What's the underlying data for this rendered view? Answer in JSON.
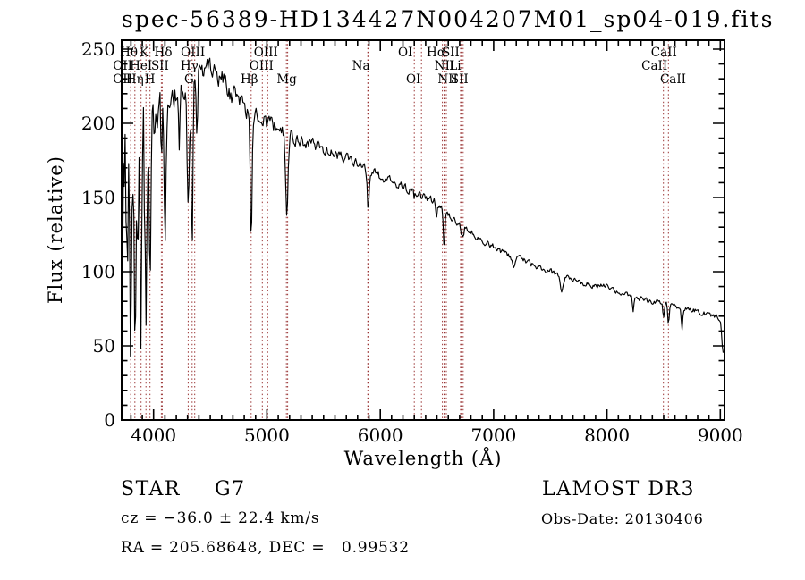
{
  "title": "spec-56389-HD134427N004207M01_sp04-019.fits",
  "axes": {
    "x": {
      "label": "Wavelength (Å)",
      "tick_values": [
        4000,
        5000,
        6000,
        7000,
        8000,
        9000
      ],
      "minor_step": 100
    },
    "y": {
      "label": "Flux (relative)",
      "tick_values": [
        0,
        50,
        100,
        150,
        200,
        250
      ],
      "minor_step": 10
    }
  },
  "footer": {
    "classification": "STAR",
    "subclass": "G7",
    "cz_line": "cz = −36.0 ± 22.4 km/s",
    "radec_line": "RA = 205.68648, DEC =   0.99532",
    "survey": "LAMOST DR3",
    "obsdate_line": "Obs-Date: 20130406"
  },
  "colors": {
    "spectrum": "#000000",
    "marker_lines": "#9a3434",
    "frame": "#000000",
    "background": "#ffffff"
  },
  "spectral_lines": {
    "wavelengths": [
      3727,
      3798,
      3835,
      3889,
      3933,
      3968,
      4068,
      4076,
      4101,
      4305,
      4340,
      4363,
      4861,
      4959,
      5007,
      5172,
      5183,
      5890,
      5896,
      6300,
      6363,
      6548,
      6563,
      6583,
      6708,
      6716,
      6731,
      8498,
      8542,
      8662
    ],
    "labels": [
      {
        "text": "Hθ",
        "wl": 3798,
        "row": 1,
        "dx": -2
      },
      {
        "text": "K",
        "wl": 3933,
        "row": 1,
        "dx": -2
      },
      {
        "text": "Hδ",
        "wl": 4101,
        "row": 1,
        "dx": -2
      },
      {
        "text": "OIII",
        "wl": 4363,
        "row": 1,
        "dx": -2
      },
      {
        "text": "OIII",
        "wl": 5007,
        "row": 1,
        "dx": -2
      },
      {
        "text": "OI",
        "wl": 6300,
        "row": 1,
        "dx": -10
      },
      {
        "text": "Hα",
        "wl": 6563,
        "row": 1,
        "dx": -9
      },
      {
        "text": "SII",
        "wl": 6716,
        "row": 1,
        "dx": -12
      },
      {
        "text": "CaII",
        "wl": 8542,
        "row": 1,
        "dx": -5
      },
      {
        "text": "OII",
        "wl": 3727,
        "row": 2,
        "dx": 0
      },
      {
        "text": "HeI",
        "wl": 3889,
        "row": 2,
        "dx": 0
      },
      {
        "text": "SII",
        "wl": 4072,
        "row": 2,
        "dx": -2
      },
      {
        "text": "Hγ",
        "wl": 4340,
        "row": 2,
        "dx": -3
      },
      {
        "text": "OIII",
        "wl": 4959,
        "row": 2,
        "dx": -1
      },
      {
        "text": "Na",
        "wl": 5893,
        "row": 2,
        "dx": -8
      },
      {
        "text": "NII",
        "wl": 6583,
        "row": 2,
        "dx": -2
      },
      {
        "text": "Li",
        "wl": 6708,
        "row": 2,
        "dx": -6
      },
      {
        "text": "CaII",
        "wl": 8498,
        "row": 2,
        "dx": -10
      },
      {
        "text": "OII",
        "wl": 3727,
        "row": 3,
        "dx": 0
      },
      {
        "text": "Hη",
        "wl": 3835,
        "row": 3,
        "dx": 0
      },
      {
        "text": "H",
        "wl": 3968,
        "row": 3,
        "dx": 0
      },
      {
        "text": "G",
        "wl": 4305,
        "row": 3,
        "dx": 1
      },
      {
        "text": "Hβ",
        "wl": 4861,
        "row": 3,
        "dx": -2
      },
      {
        "text": "Mg",
        "wl": 5175,
        "row": 3,
        "dx": 0
      },
      {
        "text": "OI",
        "wl": 6363,
        "row": 3,
        "dx": -9
      },
      {
        "text": "NII",
        "wl": 6548,
        "row": 3,
        "dx": 6
      },
      {
        "text": "SII",
        "wl": 6731,
        "row": 3,
        "dx": -4
      },
      {
        "text": "CaII",
        "wl": 8662,
        "row": 3,
        "dx": -10
      }
    ]
  },
  "chart_data": {
    "type": "line",
    "title": "spec-56389-HD134427N004207M01_sp04-019.fits",
    "xlabel": "Wavelength (Å)",
    "ylabel": "Flux (relative)",
    "xlim": [
      3718,
      9037
    ],
    "ylim": [
      0,
      256
    ],
    "x_ticks": [
      4000,
      5000,
      6000,
      7000,
      8000,
      9000
    ],
    "y_ticks": [
      0,
      50,
      100,
      150,
      200,
      250
    ],
    "grid": false,
    "legend": "none",
    "description": "Noisy stellar spectrum (G7 star): flux rises from ~150 at 3718 Å to a peak ~235-245 near 4400-4600 Å, then declines steadily to ~70 at 9000 Å; strong noise at the blue end and absorption dips at Balmer/CaII/Mg/Na/Ha/CaII-triplet lines.",
    "continuum_points": [
      [
        3718,
        150
      ],
      [
        3760,
        155
      ],
      [
        3800,
        165
      ],
      [
        3850,
        172
      ],
      [
        3900,
        178
      ],
      [
        3950,
        182
      ],
      [
        4000,
        195
      ],
      [
        4050,
        205
      ],
      [
        4100,
        212
      ],
      [
        4150,
        216
      ],
      [
        4200,
        220
      ],
      [
        4250,
        227
      ],
      [
        4300,
        231
      ],
      [
        4350,
        233
      ],
      [
        4400,
        232
      ],
      [
        4450,
        233
      ],
      [
        4500,
        233
      ],
      [
        4550,
        231
      ],
      [
        4600,
        228
      ],
      [
        4650,
        224
      ],
      [
        4700,
        220
      ],
      [
        4750,
        214
      ],
      [
        4800,
        210
      ],
      [
        4850,
        207
      ],
      [
        4900,
        205
      ],
      [
        4950,
        202
      ],
      [
        5000,
        200
      ],
      [
        5100,
        196
      ],
      [
        5200,
        192
      ],
      [
        5300,
        189
      ],
      [
        5400,
        186
      ],
      [
        5500,
        183
      ],
      [
        5600,
        179
      ],
      [
        5700,
        176
      ],
      [
        5800,
        173
      ],
      [
        5900,
        168
      ],
      [
        6000,
        164
      ],
      [
        6100,
        160
      ],
      [
        6200,
        157
      ],
      [
        6300,
        153
      ],
      [
        6400,
        150
      ],
      [
        6450,
        149
      ],
      [
        6500,
        147
      ],
      [
        6550,
        143
      ],
      [
        6600,
        137
      ],
      [
        6650,
        134
      ],
      [
        6700,
        131
      ],
      [
        6800,
        127
      ],
      [
        6900,
        121
      ],
      [
        7000,
        116
      ],
      [
        7100,
        112
      ],
      [
        7200,
        109
      ],
      [
        7300,
        106
      ],
      [
        7400,
        103
      ],
      [
        7500,
        100
      ],
      [
        7600,
        97
      ],
      [
        7700,
        94
      ],
      [
        7800,
        92
      ],
      [
        7900,
        91
      ],
      [
        8000,
        91
      ],
      [
        8050,
        89
      ],
      [
        8100,
        86
      ],
      [
        8200,
        84
      ],
      [
        8300,
        82
      ],
      [
        8400,
        80
      ],
      [
        8500,
        79
      ],
      [
        8600,
        77
      ],
      [
        8700,
        75
      ],
      [
        8800,
        73
      ],
      [
        8900,
        71
      ],
      [
        8980,
        69
      ],
      [
        9005,
        66
      ],
      [
        9015,
        52
      ],
      [
        9025,
        45
      ]
    ],
    "noise_envelope": [
      [
        3718,
        55
      ],
      [
        3780,
        48
      ],
      [
        3850,
        45
      ],
      [
        3920,
        42
      ],
      [
        3970,
        32
      ],
      [
        4010,
        18
      ],
      [
        4060,
        14
      ],
      [
        4150,
        10
      ],
      [
        4300,
        9
      ],
      [
        4500,
        8
      ],
      [
        4700,
        7
      ],
      [
        4900,
        6
      ],
      [
        5100,
        5
      ],
      [
        5300,
        4.2
      ],
      [
        5500,
        3.6
      ],
      [
        5800,
        3.2
      ],
      [
        6000,
        3
      ],
      [
        6300,
        2.8
      ],
      [
        6600,
        2.5
      ],
      [
        7000,
        2.2
      ],
      [
        7500,
        1.9
      ],
      [
        8000,
        1.7
      ],
      [
        8500,
        1.7
      ],
      [
        9025,
        1.7
      ]
    ],
    "absorption_dips": [
      [
        3727,
        115,
        5
      ],
      [
        3798,
        95,
        6
      ],
      [
        3835,
        105,
        6
      ],
      [
        3889,
        115,
        7
      ],
      [
        3933,
        130,
        8
      ],
      [
        3968,
        125,
        8
      ],
      [
        4068,
        25,
        5
      ],
      [
        4101,
        100,
        8
      ],
      [
        4226,
        35,
        5
      ],
      [
        4305,
        85,
        10
      ],
      [
        4340,
        120,
        7
      ],
      [
        4383,
        45,
        5
      ],
      [
        4861,
        80,
        8
      ],
      [
        5175,
        55,
        10
      ],
      [
        5893,
        28,
        8
      ],
      [
        6300,
        7,
        5
      ],
      [
        6363,
        6,
        5
      ],
      [
        6495,
        10,
        6
      ],
      [
        6563,
        28,
        7
      ],
      [
        6716,
        7,
        5
      ],
      [
        6731,
        7,
        5
      ],
      [
        7180,
        7,
        12
      ],
      [
        7600,
        10,
        12
      ],
      [
        8230,
        11,
        6
      ],
      [
        8498,
        11,
        6
      ],
      [
        8542,
        13,
        6
      ],
      [
        8662,
        13,
        6
      ]
    ],
    "samples": 690,
    "seed": 73
  }
}
